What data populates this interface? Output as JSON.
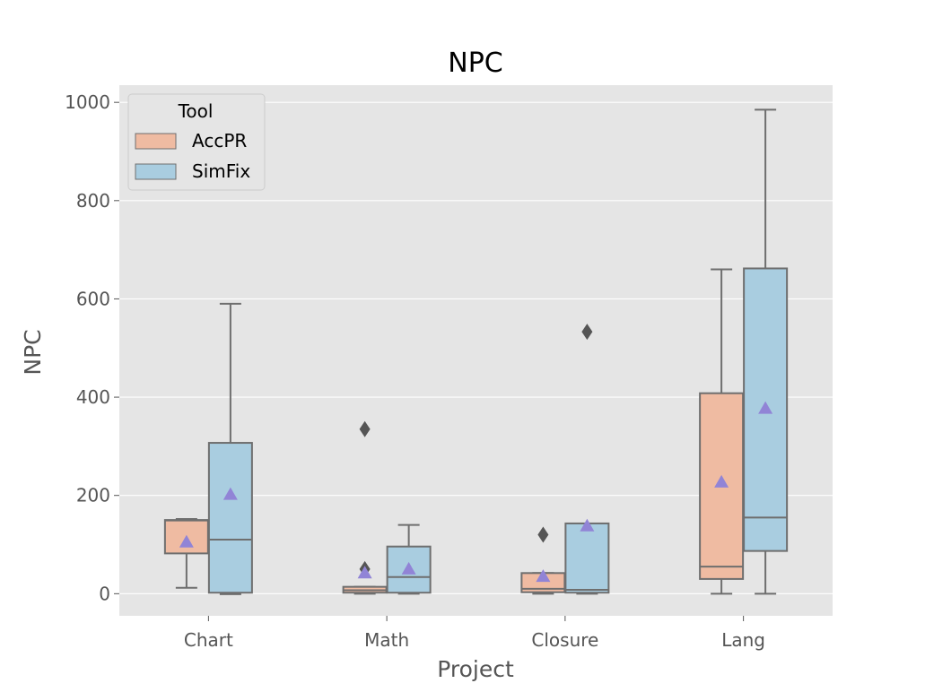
{
  "chart_data": {
    "type": "box",
    "title": "NPC",
    "xlabel": "Project",
    "ylabel": "NPC",
    "ylim": [
      -45,
      1035
    ],
    "yticks": [
      0,
      200,
      400,
      600,
      800,
      1000
    ],
    "categories": [
      "Chart",
      "Math",
      "Closure",
      "Lang"
    ],
    "grid": true,
    "legend": {
      "title": "Tool",
      "placement": "top-left",
      "entries": [
        "AccPR",
        "SimFix"
      ]
    },
    "series": [
      {
        "name": "AccPR",
        "color": "#efbba2",
        "boxes": [
          {
            "whisker_low": 12,
            "q1": 82,
            "median": 149,
            "q3": 150,
            "whisker_high": 152,
            "mean": 105,
            "outliers": []
          },
          {
            "whisker_low": 0,
            "q1": 2,
            "median": 7,
            "q3": 14,
            "whisker_high": 14,
            "mean": 42,
            "outliers": [
              335,
              50
            ]
          },
          {
            "whisker_low": 0,
            "q1": 3,
            "median": 10,
            "q3": 42,
            "whisker_high": 42,
            "mean": 35,
            "outliers": [
              120
            ]
          },
          {
            "whisker_low": 0,
            "q1": 30,
            "median": 55,
            "q3": 408,
            "whisker_high": 660,
            "mean": 227,
            "outliers": []
          }
        ]
      },
      {
        "name": "SimFix",
        "color": "#a9cde0",
        "boxes": [
          {
            "whisker_low": -1,
            "q1": 2,
            "median": 110,
            "q3": 307,
            "whisker_high": 590,
            "mean": 202,
            "outliers": []
          },
          {
            "whisker_low": 0,
            "q1": 2,
            "median": 34,
            "q3": 96,
            "whisker_high": 140,
            "mean": 50,
            "outliers": []
          },
          {
            "whisker_low": 0,
            "q1": 2,
            "median": 8,
            "q3": 143,
            "whisker_high": 143,
            "mean": 138,
            "outliers": [
              533
            ]
          },
          {
            "whisker_low": 0,
            "q1": 87,
            "median": 155,
            "q3": 662,
            "whisker_high": 985,
            "mean": 377,
            "outliers": []
          }
        ]
      }
    ],
    "colors": {
      "plot_background": "#e5e5e5",
      "grid": "#ffffff",
      "box_edge": "#6e6e6e",
      "mean_marker": "#9184d6",
      "outlier_marker": "#555555"
    }
  }
}
